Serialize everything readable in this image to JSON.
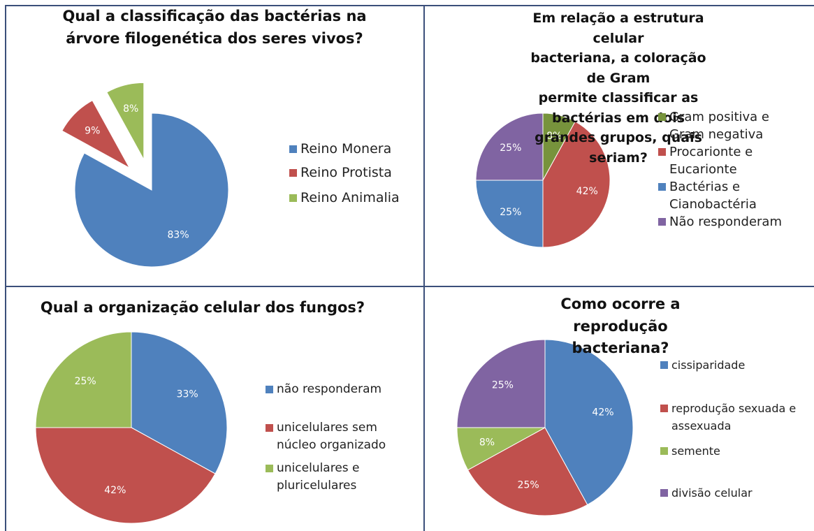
{
  "chart_data": [
    {
      "type": "pie",
      "title": "Qual a classificação das bactérias na\nárvore filogenética dos seres vivos?",
      "categories": [
        "Reino Monera",
        "Reino Protista",
        "Reino Animalia"
      ],
      "values": [
        83,
        9,
        8
      ],
      "value_labels": [
        "83%",
        "9%",
        "8%"
      ],
      "colors": [
        "#4f81bd",
        "#c0504d",
        "#9bbb59"
      ],
      "legend": "right"
    },
    {
      "type": "pie",
      "title": "Em relação a estrutura celular\nbacteriana, a coloração de Gram\npermite classificar as bactérias em dois\ngrandes grupos, quais seriam?",
      "categories": [
        "Gram positiva e\nGram negativa",
        "Procarionte e\nEucarionte",
        "Bactérias e\nCianobactéria",
        "Não responderam"
      ],
      "values": [
        8,
        42,
        25,
        25
      ],
      "value_labels": [
        "8%",
        "42%",
        "25%",
        "25%"
      ],
      "colors": [
        "#77933c",
        "#c0504d",
        "#4f81bd",
        "#8064a2"
      ],
      "legend": "right"
    },
    {
      "type": "pie",
      "title": "Qual a organização celular dos fungos?",
      "categories": [
        "não responderam",
        "unicelulares sem\nnúcleo organizado",
        "unicelulares e\npluricelulares"
      ],
      "values": [
        33,
        42,
        25
      ],
      "value_labels": [
        "33%",
        "42%",
        "25%"
      ],
      "colors": [
        "#4f81bd",
        "#c0504d",
        "#9bbb59"
      ],
      "legend": "right"
    },
    {
      "type": "pie",
      "title": "Como ocorre a reprodução\nbacteriana?",
      "categories": [
        "cissiparidade",
        "reprodução sexuada e\nassexuada",
        "semente",
        "divisão celular"
      ],
      "values": [
        42,
        25,
        8,
        25
      ],
      "value_labels": [
        "42%",
        "25%",
        "8%",
        "25%"
      ],
      "colors": [
        "#4f81bd",
        "#c0504d",
        "#9bbb59",
        "#8064a2"
      ],
      "legend": "right"
    }
  ]
}
